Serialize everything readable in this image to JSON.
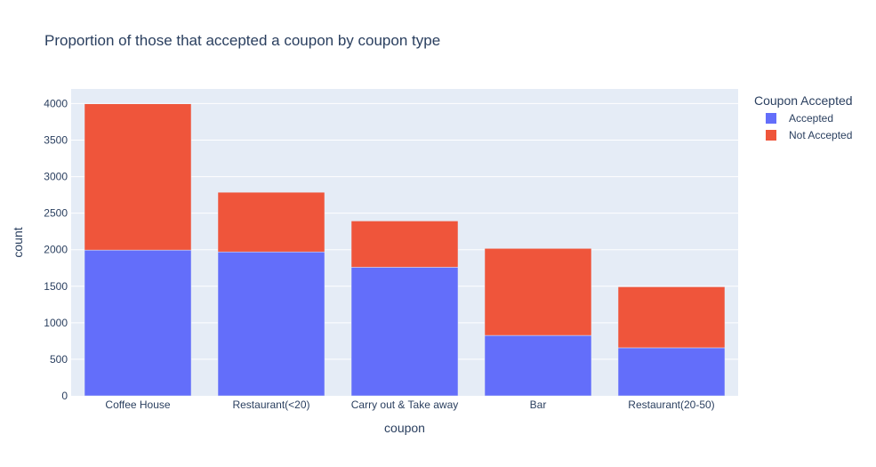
{
  "chart_data": {
    "type": "bar",
    "barmode": "stack",
    "title": "Proportion of those that accepted a coupon by coupon type",
    "xlabel": "coupon",
    "ylabel": "count",
    "ylim": [
      0,
      4200
    ],
    "yticks": [
      0,
      500,
      1000,
      1500,
      2000,
      2500,
      3000,
      3500,
      4000
    ],
    "categories": [
      "Coffee House",
      "Restaurant(<20)",
      "Carry out & Take away",
      "Bar",
      "Restaurant(20-50)"
    ],
    "series": [
      {
        "name": "Accepted",
        "values": [
          1995,
          1970,
          1760,
          827,
          658
        ],
        "color": "#636efa"
      },
      {
        "name": "Not Accepted",
        "values": [
          2001,
          816,
          633,
          1190,
          834
        ],
        "color": "#ef553b"
      }
    ],
    "legend": {
      "title": "Coupon Accepted",
      "placement": "top-right"
    },
    "grid": true,
    "plot_bgcolor": "#e5ecf6"
  }
}
